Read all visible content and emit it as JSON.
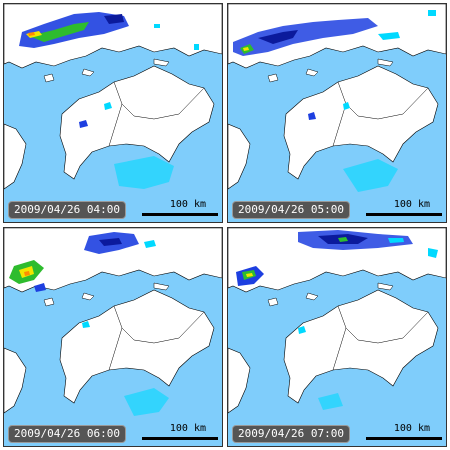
{
  "panels": [
    {
      "timestamp": "2009/04/26 04:00",
      "scale_label": "100 km"
    },
    {
      "timestamp": "2009/04/26 05:00",
      "scale_label": "100 km"
    },
    {
      "timestamp": "2009/04/26 06:00",
      "scale_label": "100 km"
    },
    {
      "timestamp": "2009/04/26 07:00",
      "scale_label": "100 km"
    }
  ],
  "colors": {
    "sea": "#7fcdfb",
    "land": "#ffffff",
    "border": "#000000",
    "rain_light": "#00d9ff",
    "rain_blue": "#1d3fe0",
    "rain_navy": "#0b1a9c",
    "rain_green": "#2ebc2e",
    "rain_yellow": "#f2e600",
    "rain_orange": "#ff8c00",
    "rain_red": "#e60000"
  }
}
